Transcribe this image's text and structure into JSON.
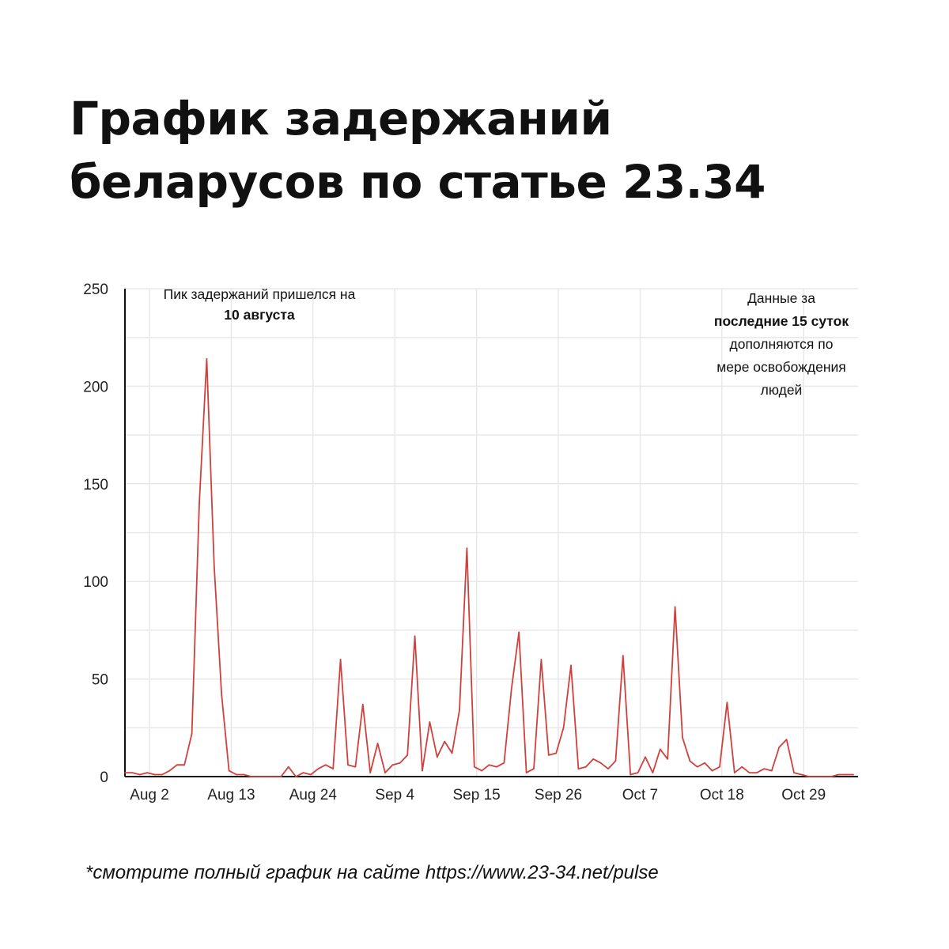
{
  "title_line1": "График задержаний",
  "title_line2": "беларусов по статье 23.34",
  "annotation_peak": {
    "line1": "Пик задержаний пришелся на",
    "line2_bold": "10 августа"
  },
  "annotation_recent": {
    "line1": "Данные за",
    "line2_bold": "последние 15 суток",
    "line3": "дополняются по",
    "line4": "мере освобождения",
    "line5": "людей"
  },
  "footer": "*смотрите полный график на сайте https://www.23-34.net/pulse",
  "colors": {
    "line": "#d0403c",
    "grid": "#e8e8e8",
    "axis": "#111111"
  },
  "chart_data": {
    "type": "line",
    "x": [
      "Jul 30",
      "Jul 31",
      "Aug 1",
      "Aug 2",
      "Aug 3",
      "Aug 4",
      "Aug 5",
      "Aug 6",
      "Aug 7",
      "Aug 8",
      "Aug 9",
      "Aug 10",
      "Aug 11",
      "Aug 12",
      "Aug 13",
      "Aug 14",
      "Aug 15",
      "Aug 16",
      "Aug 17",
      "Aug 18",
      "Aug 19",
      "Aug 20",
      "Aug 21",
      "Aug 22",
      "Aug 23",
      "Aug 24",
      "Aug 25",
      "Aug 26",
      "Aug 27",
      "Aug 28",
      "Aug 29",
      "Aug 30",
      "Aug 31",
      "Sep 1",
      "Sep 2",
      "Sep 3",
      "Sep 4",
      "Sep 5",
      "Sep 6",
      "Sep 7",
      "Sep 8",
      "Sep 9",
      "Sep 10",
      "Sep 11",
      "Sep 12",
      "Sep 13",
      "Sep 14",
      "Sep 15",
      "Sep 16",
      "Sep 17",
      "Sep 18",
      "Sep 19",
      "Sep 20",
      "Sep 21",
      "Sep 22",
      "Sep 23",
      "Sep 24",
      "Sep 25",
      "Sep 26",
      "Sep 27",
      "Sep 28",
      "Sep 29",
      "Sep 30",
      "Oct 1",
      "Oct 2",
      "Oct 3",
      "Oct 4",
      "Oct 5",
      "Oct 6",
      "Oct 7",
      "Oct 8",
      "Oct 9",
      "Oct 10",
      "Oct 11",
      "Oct 12",
      "Oct 13",
      "Oct 14",
      "Oct 15",
      "Oct 16",
      "Oct 17",
      "Oct 18",
      "Oct 19",
      "Oct 20",
      "Oct 21",
      "Oct 22",
      "Oct 23",
      "Oct 24",
      "Oct 25",
      "Oct 26",
      "Oct 27",
      "Oct 28",
      "Oct 29",
      "Oct 30",
      "Oct 31",
      "Nov 1",
      "Nov 2",
      "Nov 3",
      "Nov 4",
      "Nov 5"
    ],
    "values": [
      2,
      2,
      1,
      2,
      1,
      1,
      3,
      6,
      6,
      22,
      140,
      214,
      108,
      42,
      3,
      1,
      1,
      0,
      0,
      0,
      0,
      0,
      5,
      0,
      2,
      1,
      4,
      6,
      4,
      60,
      6,
      5,
      37,
      2,
      17,
      2,
      6,
      7,
      11,
      72,
      3,
      28,
      10,
      18,
      12,
      34,
      117,
      5,
      3,
      6,
      5,
      7,
      45,
      74,
      2,
      4,
      60,
      11,
      12,
      25,
      57,
      4,
      5,
      9,
      7,
      4,
      8,
      62,
      1,
      2,
      10,
      2,
      14,
      9,
      87,
      20,
      8,
      5,
      7,
      3,
      5,
      38,
      2,
      5,
      2,
      2,
      4,
      3,
      15,
      19,
      2,
      1,
      0,
      0,
      0,
      0,
      1,
      1,
      1
    ],
    "x_ticks": [
      "Aug 2",
      "Aug 13",
      "Aug 24",
      "Sep 4",
      "Sep 15",
      "Sep 26",
      "Oct 7",
      "Oct 18",
      "Oct 29"
    ],
    "y_ticks": [
      "0",
      "50",
      "100",
      "150",
      "200",
      "250"
    ],
    "ylim": [
      0,
      250
    ],
    "grid": true,
    "title": "",
    "xlabel": "",
    "ylabel": ""
  }
}
